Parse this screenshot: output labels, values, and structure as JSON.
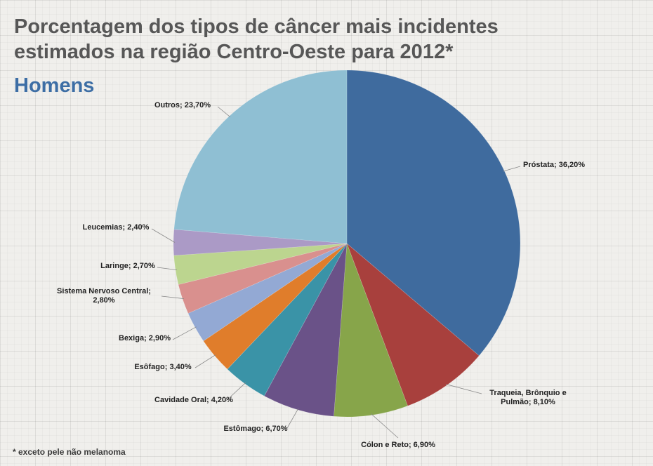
{
  "title": "Porcentagem dos tipos de câncer mais incidentes estimados na região Centro-Oeste para 2012*",
  "subtitle": "Homens",
  "footnote": "* exceto pele não melanoma",
  "chart_data": {
    "type": "pie",
    "title": "Porcentagem dos tipos de câncer mais incidentes estimados na região Centro-Oeste para 2012*",
    "subtitle": "Homens",
    "unit": "%",
    "slices": [
      {
        "name": "Próstata",
        "value": 36.2,
        "label": [
          "Próstata; 36,20%"
        ],
        "color": "#3f6b9e"
      },
      {
        "name": "Traqueia, Brônquio e Pulmão",
        "value": 8.1,
        "label": [
          "Traqueia, Brônquio e",
          "Pulmão; 8,10%"
        ],
        "color": "#a8403d"
      },
      {
        "name": "Cólon e Reto",
        "value": 6.9,
        "label": [
          "Cólon e Reto; 6,90%"
        ],
        "color": "#87a54a"
      },
      {
        "name": "Estômago",
        "value": 6.7,
        "label": [
          "Estômago; 6,70%"
        ],
        "color": "#6a5288"
      },
      {
        "name": "Cavidade Oral",
        "value": 4.2,
        "label": [
          "Cavidade Oral; 4,20%"
        ],
        "color": "#3a93a7"
      },
      {
        "name": "Esôfago",
        "value": 3.4,
        "label": [
          "Esôfago; 3,40%"
        ],
        "color": "#e07d2b"
      },
      {
        "name": "Bexiga",
        "value": 2.9,
        "label": [
          "Bexiga; 2,90%"
        ],
        "color": "#93a9d4"
      },
      {
        "name": "Sistema Nervoso Central",
        "value": 2.8,
        "label": [
          "Sistema Nervoso Central;",
          "2,80%"
        ],
        "color": "#d9908e"
      },
      {
        "name": "Laringe",
        "value": 2.7,
        "label": [
          "Laringe; 2,70%"
        ],
        "color": "#bcd58f"
      },
      {
        "name": "Leucemias",
        "value": 2.4,
        "label": [
          "Leucemias; 2,40%"
        ],
        "color": "#ab9ac6"
      },
      {
        "name": "Outros",
        "value": 23.7,
        "label": [
          "Outros; 23,70%"
        ],
        "color": "#8fbfd3"
      }
    ],
    "start_angle": "12 o'clock",
    "direction": "clockwise",
    "legend": "none",
    "data_labels": "outside with leader lines"
  }
}
